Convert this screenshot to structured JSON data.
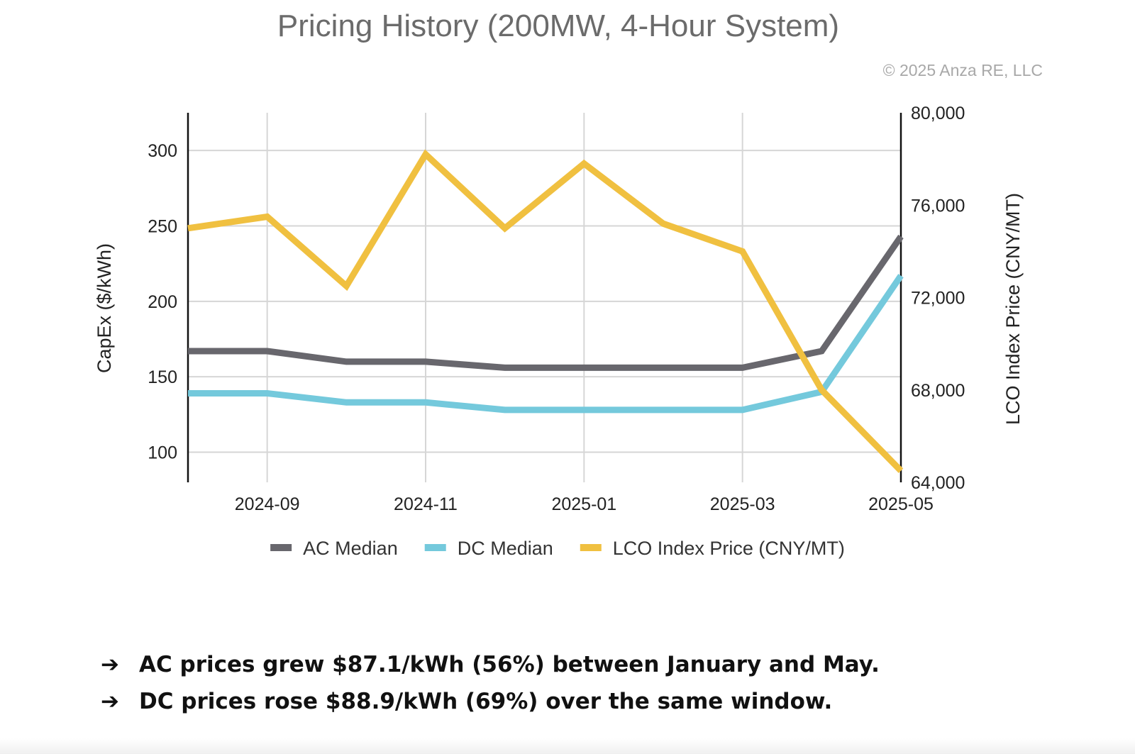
{
  "header": {
    "title": "Pricing History (200MW, 4-Hour System)",
    "copyright": "© 2025 Anza RE, LLC"
  },
  "chart_data": {
    "type": "line",
    "title": "Pricing History (200MW, 4-Hour System)",
    "x": [
      "2024-08",
      "2024-09",
      "2024-10",
      "2024-11",
      "2024-12",
      "2025-01",
      "2025-02",
      "2025-03",
      "2025-04",
      "2025-05"
    ],
    "x_tick_labels": [
      "2024-09",
      "2024-11",
      "2025-01",
      "2025-03",
      "2025-05"
    ],
    "xlabel": "",
    "ylabel": "CapEx ($/kWh)",
    "ylim": [
      80,
      325
    ],
    "y_ticks": [
      "100",
      "150",
      "200",
      "250",
      "300"
    ],
    "y2label": "LCO Index Price (CNY/MT)",
    "y2lim": [
      64000,
      80000
    ],
    "y2_ticks": [
      "64,000",
      "68,000",
      "72,000",
      "76,000",
      "80,000"
    ],
    "grid": true,
    "legend_position": "bottom",
    "series": [
      {
        "name": "AC Median",
        "axis": "left",
        "color": "#68676d",
        "values": [
          167,
          167,
          160,
          160,
          156,
          156,
          156,
          156,
          167,
          243
        ]
      },
      {
        "name": "DC Median",
        "axis": "left",
        "color": "#74c9dc",
        "values": [
          139,
          139,
          133,
          133,
          128,
          128,
          128,
          128,
          140,
          217
        ]
      },
      {
        "name": "LCO Index Price (CNY/MT)",
        "axis": "right",
        "color": "#f0c040",
        "values": [
          75000,
          75500,
          72500,
          78200,
          75000,
          77800,
          75200,
          74000,
          68000,
          64500
        ]
      }
    ]
  },
  "bullets": [
    {
      "arrow": "➔",
      "text": "AC prices grew $87.1/kWh (56%) between January and May."
    },
    {
      "arrow": "➔",
      "text": "DC prices rose $88.9/kWh (69%) over the same window."
    }
  ]
}
